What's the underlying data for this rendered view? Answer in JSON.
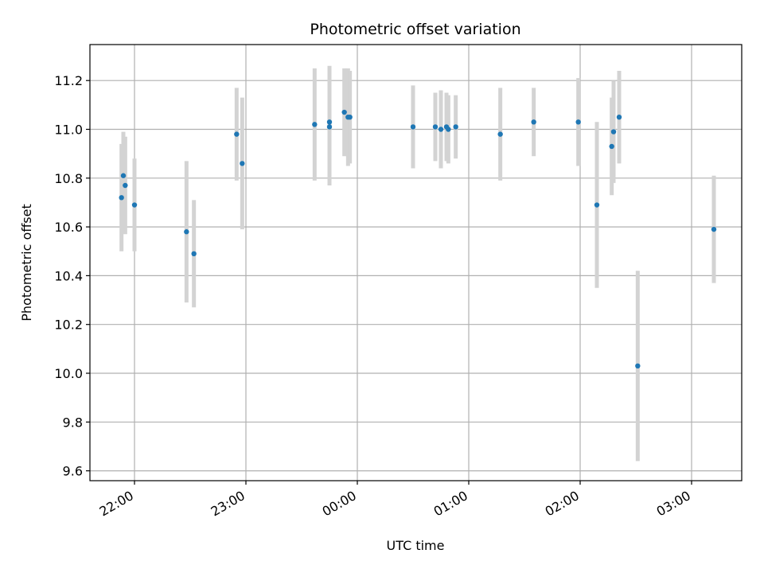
{
  "chart_data": {
    "type": "scatter",
    "title": "Photometric offset variation",
    "xlabel": "UTC time",
    "ylabel": "Photometric offset",
    "x_tick_labels": [
      "22:00",
      "23:00",
      "00:00",
      "01:00",
      "02:00",
      "03:00"
    ],
    "y_tick_labels": [
      "9.6",
      "9.8",
      "10.0",
      "10.2",
      "10.4",
      "10.6",
      "10.8",
      "11.0",
      "11.2"
    ],
    "grid": true,
    "colors": {
      "point": "#1f77b4",
      "errorbar": "#d3d3d3",
      "grid": "#b0b0b0"
    },
    "points": [
      {
        "x": "21:53",
        "y": 10.72,
        "err": 0.22
      },
      {
        "x": "21:54",
        "y": 10.81,
        "err": 0.18
      },
      {
        "x": "21:55",
        "y": 10.77,
        "err": 0.2
      },
      {
        "x": "22:00",
        "y": 10.69,
        "err": 0.19
      },
      {
        "x": "22:28",
        "y": 10.58,
        "err": 0.29
      },
      {
        "x": "22:32",
        "y": 10.49,
        "err": 0.22
      },
      {
        "x": "22:55",
        "y": 10.98,
        "err": 0.19
      },
      {
        "x": "22:58",
        "y": 10.86,
        "err": 0.27
      },
      {
        "x": "23:37",
        "y": 11.02,
        "err": 0.23
      },
      {
        "x": "23:45",
        "y": 11.03,
        "err": 0.23
      },
      {
        "x": "23:45",
        "y": 11.01,
        "err": 0.24
      },
      {
        "x": "23:53",
        "y": 11.07,
        "err": 0.18
      },
      {
        "x": "23:55",
        "y": 11.05,
        "err": 0.2
      },
      {
        "x": "23:56",
        "y": 11.05,
        "err": 0.19
      },
      {
        "x": "00:30",
        "y": 11.01,
        "err": 0.17
      },
      {
        "x": "00:42",
        "y": 11.01,
        "err": 0.14
      },
      {
        "x": "00:45",
        "y": 11.0,
        "err": 0.16
      },
      {
        "x": "00:48",
        "y": 11.01,
        "err": 0.14
      },
      {
        "x": "00:49",
        "y": 11.0,
        "err": 0.14
      },
      {
        "x": "00:53",
        "y": 11.01,
        "err": 0.13
      },
      {
        "x": "01:17",
        "y": 10.98,
        "err": 0.19
      },
      {
        "x": "01:35",
        "y": 11.03,
        "err": 0.14
      },
      {
        "x": "01:59",
        "y": 11.03,
        "err": 0.18
      },
      {
        "x": "02:09",
        "y": 10.69,
        "err": 0.34
      },
      {
        "x": "02:17",
        "y": 10.93,
        "err": 0.2
      },
      {
        "x": "02:18",
        "y": 10.99,
        "err": 0.21
      },
      {
        "x": "02:21",
        "y": 11.05,
        "err": 0.19
      },
      {
        "x": "02:31",
        "y": 10.03,
        "err": 0.39
      },
      {
        "x": "03:12",
        "y": 10.59,
        "err": 0.22
      }
    ]
  }
}
